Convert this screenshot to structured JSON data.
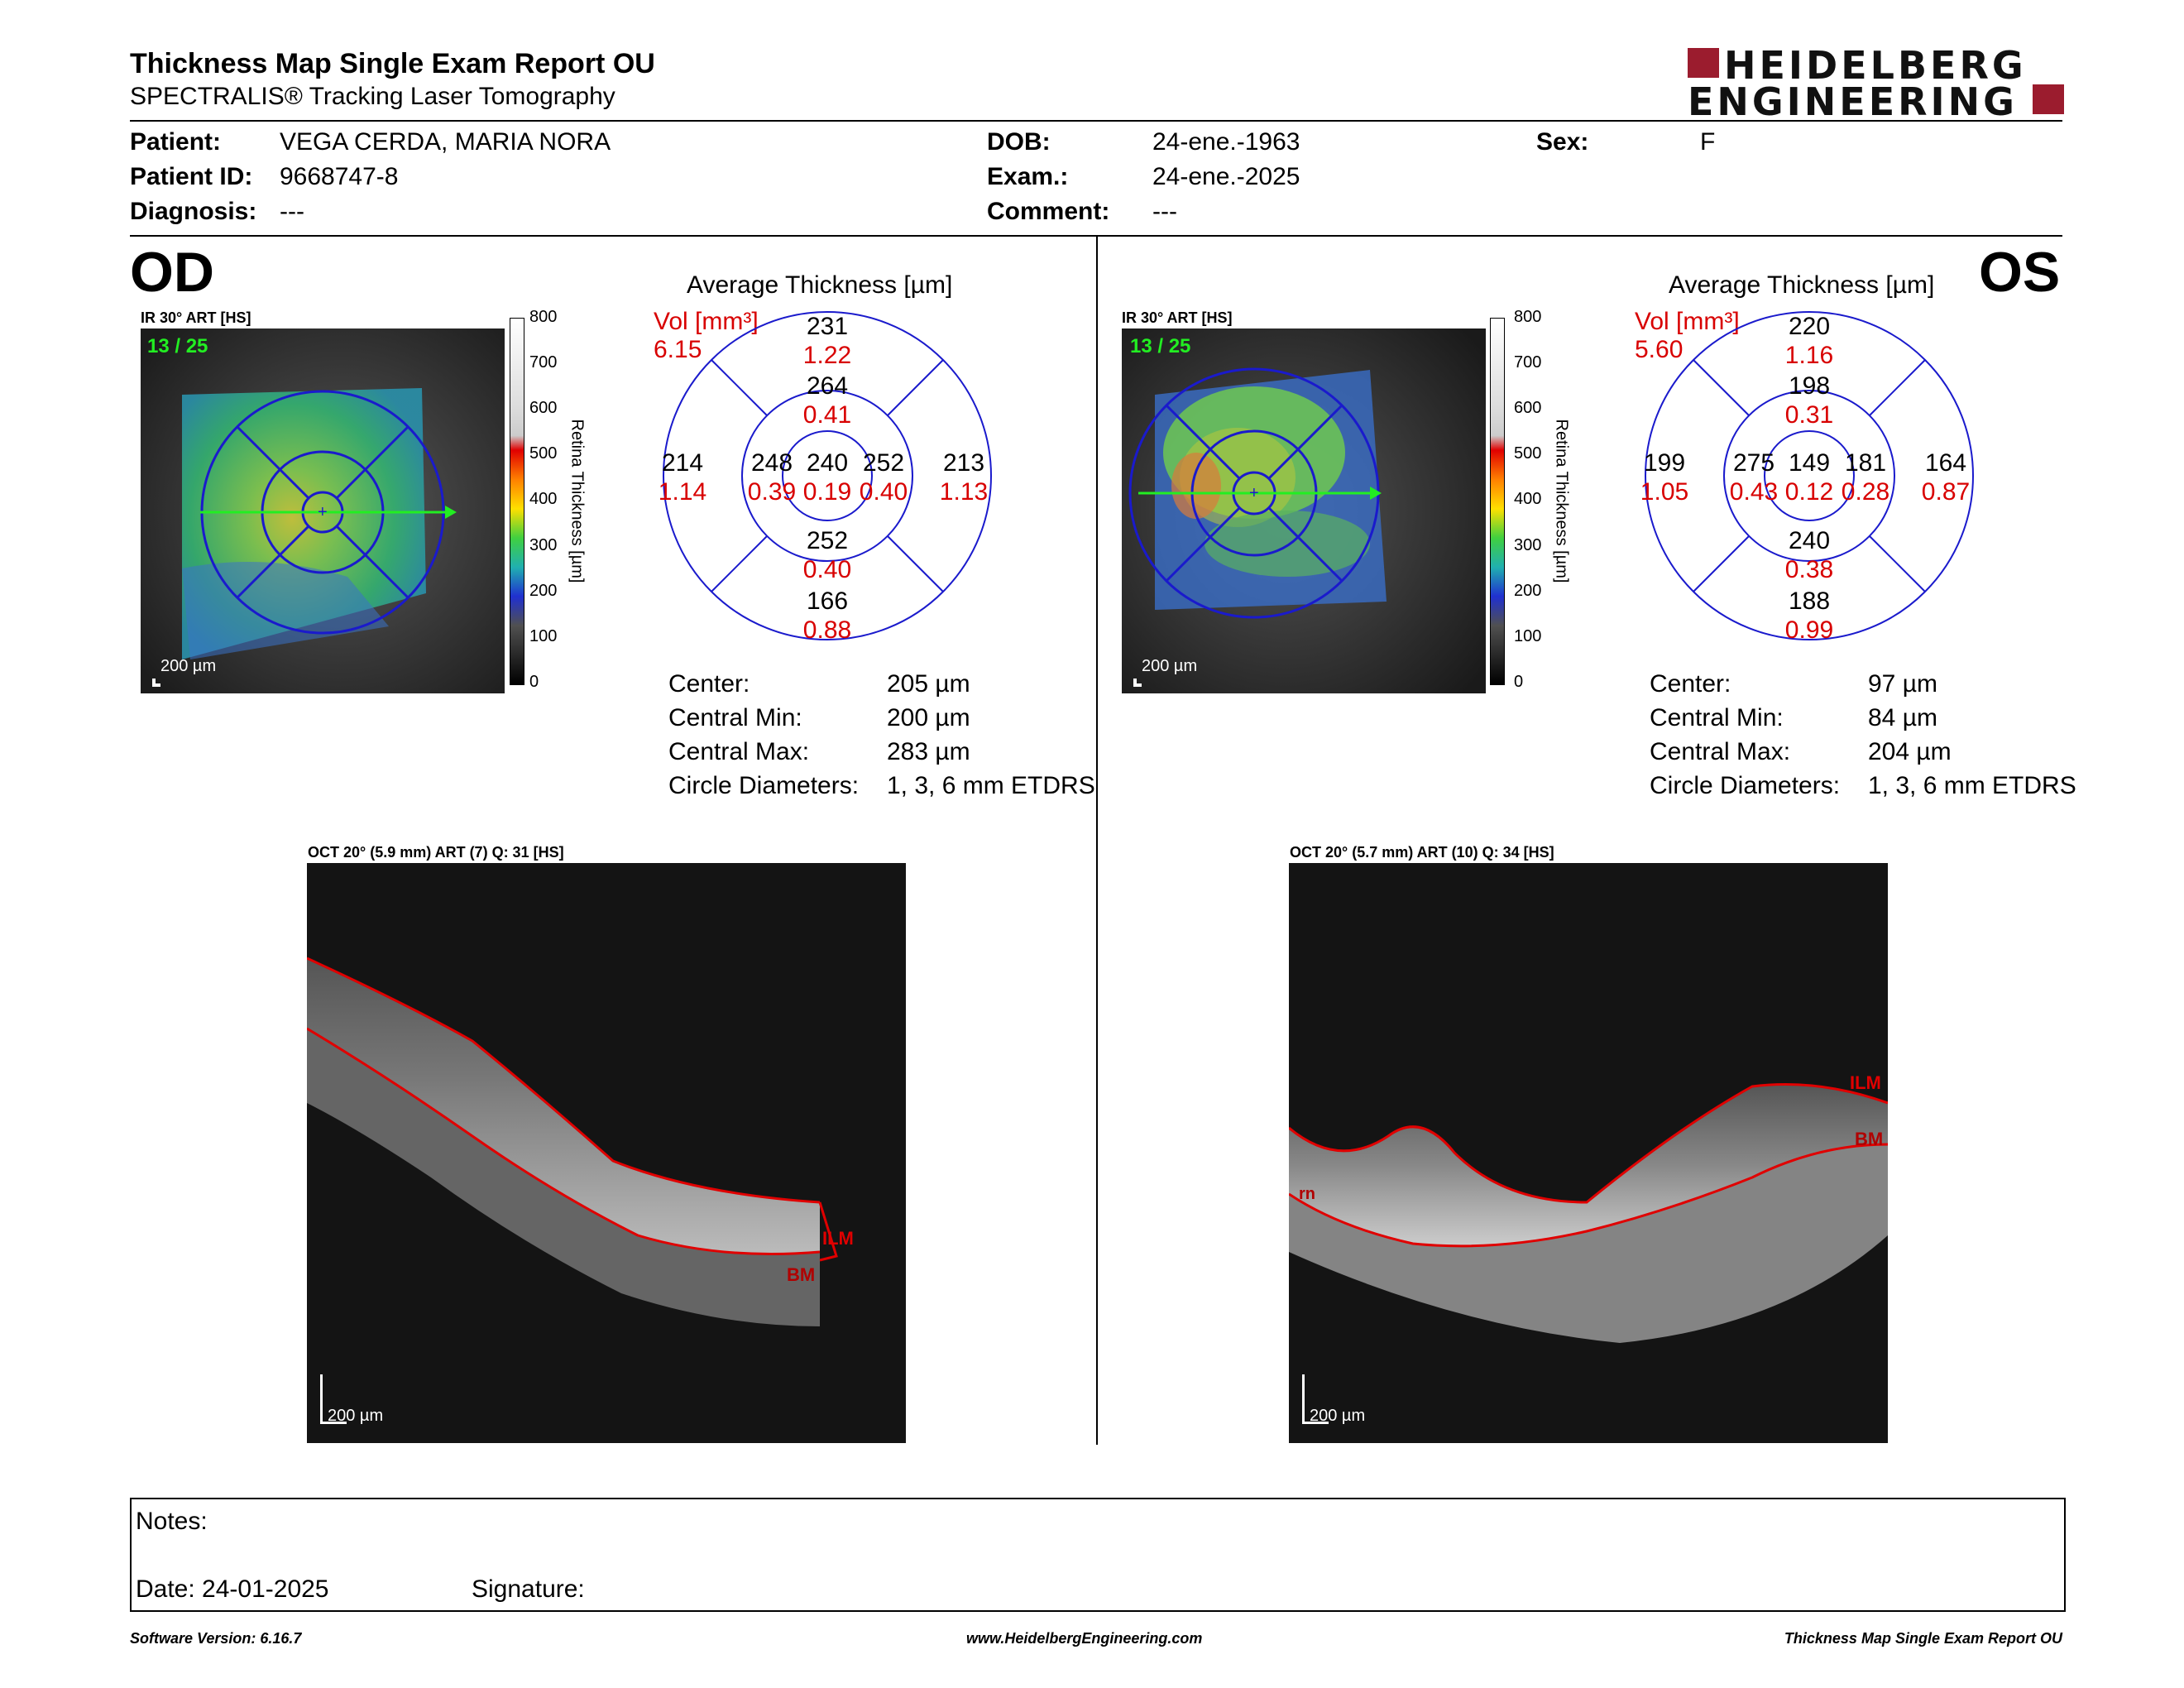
{
  "header": {
    "title": "Thickness Map Single Exam Report OU",
    "subtitle": "SPECTRALIS® Tracking Laser Tomography",
    "logo_line1": "HEIDELBERG",
    "logo_line2": "ENGINEERING"
  },
  "patient": {
    "patient_label": "Patient:",
    "patient": "VEGA CERDA, MARIA NORA",
    "id_label": "Patient ID:",
    "id": "9668747-8",
    "diagnosis_label": "Diagnosis:",
    "diagnosis": "---",
    "dob_label": "DOB:",
    "dob": "24-ene.-1963",
    "exam_label": "Exam.:",
    "exam": "24-ene.-2025",
    "comment_label": "Comment:",
    "comment": "---",
    "sex_label": "Sex:",
    "sex": "F"
  },
  "colorbar_ticks": [
    "800",
    "700",
    "600",
    "500",
    "400",
    "300",
    "200",
    "100",
    "0"
  ],
  "colorbar_title": "Retina Thickness [µm]",
  "od": {
    "eye": "OD",
    "ir_header": "IR 30° ART [HS]",
    "frame": "13 / 25",
    "ir_scale": "200 µm",
    "avg_title": "Average Thickness [µm]",
    "vol_label": "Vol [mm³]",
    "vol": "6.15",
    "grid": {
      "center_t": "240",
      "center_v": "0.19",
      "inner_sup_t": "264",
      "inner_sup_v": "0.41",
      "inner_inf_t": "252",
      "inner_inf_v": "0.40",
      "inner_left_t": "248",
      "inner_left_v": "0.39",
      "inner_right_t": "252",
      "inner_right_v": "0.40",
      "outer_sup_t": "231",
      "outer_sup_v": "1.22",
      "outer_inf_t": "166",
      "outer_inf_v": "0.88",
      "outer_left_t": "214",
      "outer_left_v": "1.14",
      "outer_right_t": "213",
      "outer_right_v": "1.13"
    },
    "stats": {
      "center_label": "Center:",
      "center": "205 µm",
      "min_label": "Central Min:",
      "min": "200 µm",
      "max_label": "Central Max:",
      "max": "283 µm",
      "diam_label": "Circle Diameters:",
      "diam": "1, 3, 6 mm ETDRS"
    },
    "oct_header": "OCT 20° (5.9 mm) ART (7) Q: 31 [HS]",
    "oct_scale": "200 µm",
    "ilm": "ILM",
    "bm": "BM"
  },
  "os": {
    "eye": "OS",
    "ir_header": "IR 30° ART [HS]",
    "frame": "13 / 25",
    "ir_scale": "200 µm",
    "avg_title": "Average Thickness [µm]",
    "vol_label": "Vol [mm³]",
    "vol": "5.60",
    "grid": {
      "center_t": "149",
      "center_v": "0.12",
      "inner_sup_t": "198",
      "inner_sup_v": "0.31",
      "inner_inf_t": "240",
      "inner_inf_v": "0.38",
      "inner_left_t": "275",
      "inner_left_v": "0.43",
      "inner_right_t": "181",
      "inner_right_v": "0.28",
      "outer_sup_t": "220",
      "outer_sup_v": "1.16",
      "outer_inf_t": "188",
      "outer_inf_v": "0.99",
      "outer_left_t": "199",
      "outer_left_v": "1.05",
      "outer_right_t": "164",
      "outer_right_v": "0.87"
    },
    "stats": {
      "center_label": "Center:",
      "center": "97 µm",
      "min_label": "Central Min:",
      "min": "84 µm",
      "max_label": "Central Max:",
      "max": "204 µm",
      "diam_label": "Circle Diameters:",
      "diam": "1, 3, 6 mm ETDRS"
    },
    "oct_header": "OCT 20° (5.7 mm) ART (10) Q: 34 [HS]",
    "oct_scale": "200 µm",
    "ilm": "ILM",
    "bm": "BM",
    "rpe_short": "rn"
  },
  "notes": {
    "notes_label": "Notes:",
    "date": "Date: 24-01-2025",
    "signature": "Signature:"
  },
  "footer": {
    "left": "Software Version: 6.16.7",
    "center": "www.HeidelbergEngineering.com",
    "right": "Thickness Map Single Exam Report OU"
  },
  "colors": {
    "red": "#d80000",
    "green_frame": "#22ee22",
    "logo_red": "#9b1c2e",
    "grid_blue": "#1a1acc"
  }
}
